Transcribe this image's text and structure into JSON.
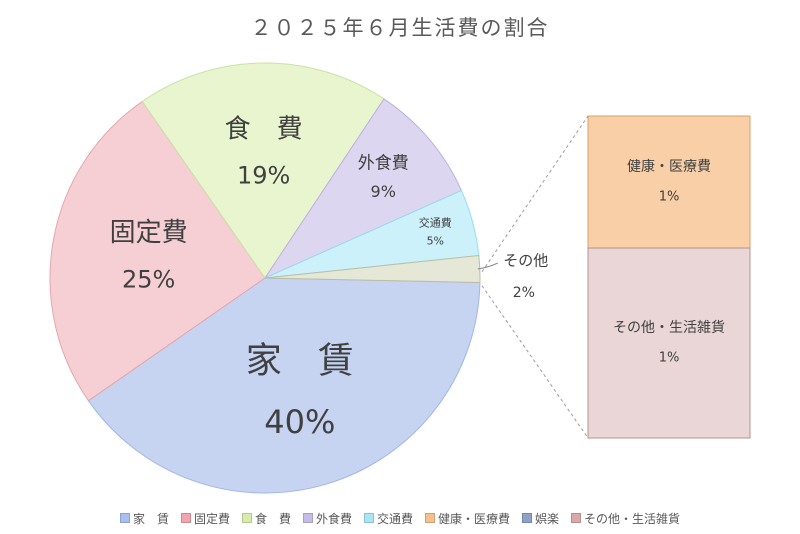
{
  "title": "２０２５年６月生活費の割合",
  "chart_data": {
    "type": "pie",
    "title": "２０２５年６月生活費の割合",
    "slices": [
      {
        "name": "家　賃",
        "label": "家　賃",
        "value": 40,
        "percent_label": "40%",
        "color": "#c6d4f2",
        "stroke": "#a0b6e6"
      },
      {
        "name": "固定費",
        "label": "固定費",
        "value": 25,
        "percent_label": "25%",
        "color": "#f6cfd4",
        "stroke": "#e3a6ad"
      },
      {
        "name": "食　費",
        "label": "食　費",
        "value": 19,
        "percent_label": "19%",
        "color": "#e8f5cf",
        "stroke": "#c9e3a4"
      },
      {
        "name": "外食費",
        "label": "外食費",
        "value": 9,
        "percent_label": "9%",
        "color": "#ddd6f0",
        "stroke": "#bcb0de"
      },
      {
        "name": "交通費",
        "label": "交通費",
        "value": 5,
        "percent_label": "5%",
        "color": "#cdf1fb",
        "stroke": "#99dcee"
      },
      {
        "name": "その他",
        "label": "その他",
        "value": 2,
        "percent_label": "2%",
        "color": "#e5e8d6",
        "stroke": "#b9bfa2"
      }
    ],
    "breakdown": {
      "parent": "その他",
      "segments": [
        {
          "name": "健康・医療費",
          "value": 1,
          "percent_label": "1%",
          "color": "#f8cfa6",
          "stroke": "#d9a06a"
        },
        {
          "name": "その他・生活雑貨",
          "value": 1,
          "percent_label": "1%",
          "color": "#ead6d6",
          "stroke": "#b79393"
        }
      ]
    },
    "legend": {
      "position": "bottom",
      "entries": [
        {
          "label": "家　賃",
          "color": "#a9bff0"
        },
        {
          "label": "固定費",
          "color": "#f2a5ae"
        },
        {
          "label": "食　費",
          "color": "#d6ecaa"
        },
        {
          "label": "外食費",
          "color": "#c7bce8"
        },
        {
          "label": "交通費",
          "color": "#a8e6f6"
        },
        {
          "label": "健康・医療費",
          "color": "#f5c08c"
        },
        {
          "label": "娯楽",
          "color": "#8da2c4"
        },
        {
          "label": "その他・生活雑貨",
          "color": "#d9a9a9"
        }
      ]
    }
  }
}
